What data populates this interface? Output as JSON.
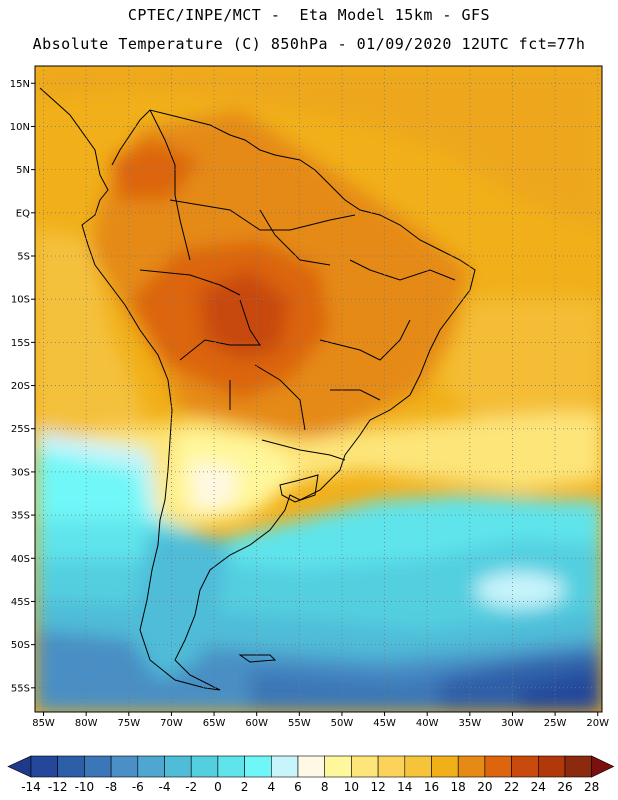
{
  "title": {
    "line1": "CPTEC/INPE/MCT -  Eta Model 15km - GFS",
    "line2": "Absolute Temperature (C) 850hPa - 01/09/2020 12UTC fct=77h"
  },
  "map": {
    "lon_range": [
      -86,
      -19.5
    ],
    "lat_range": [
      -57.8,
      17
    ],
    "lon_tick_labels": [
      "85W",
      "80W",
      "75W",
      "70W",
      "65W",
      "60W",
      "55W",
      "50W",
      "45W",
      "40W",
      "35W",
      "30W",
      "25W",
      "20W"
    ],
    "lon_tick_values": [
      -85,
      -80,
      -75,
      -70,
      -65,
      -60,
      -55,
      -50,
      -45,
      -40,
      -35,
      -30,
      -25,
      -20
    ],
    "lat_tick_labels": [
      "15N",
      "10N",
      "5N",
      "EQ",
      "5S",
      "10S",
      "15S",
      "20S",
      "25S",
      "30S",
      "35S",
      "40S",
      "45S",
      "50S",
      "55S"
    ],
    "lat_tick_values": [
      15,
      10,
      5,
      0,
      -5,
      -10,
      -15,
      -20,
      -25,
      -30,
      -35,
      -40,
      -45,
      -50,
      -55
    ],
    "grid": "dotted"
  },
  "colorbar": {
    "labels": [
      "-14",
      "-12",
      "-10",
      "-8",
      "-6",
      "-4",
      "-2",
      "0",
      "2",
      "4",
      "6",
      "8",
      "10",
      "12",
      "14",
      "16",
      "18",
      "20",
      "22",
      "24",
      "26",
      "28"
    ],
    "colors": [
      "#24479b",
      "#2d5ea8",
      "#3b77b8",
      "#4a8fc5",
      "#4fa6d1",
      "#4fbcd8",
      "#53cfe0",
      "#5fe4ec",
      "#6ff7f7",
      "#c8f4fb",
      "#fff8e4",
      "#fff79b",
      "#fde57a",
      "#fbd35a",
      "#f6c43a",
      "#f1b01a",
      "#e58a14",
      "#dc650e",
      "#c84a0c",
      "#b0380b",
      "#8c2a0e"
    ],
    "under_color": "#1f3a8a",
    "over_color": "#7a1010"
  }
}
